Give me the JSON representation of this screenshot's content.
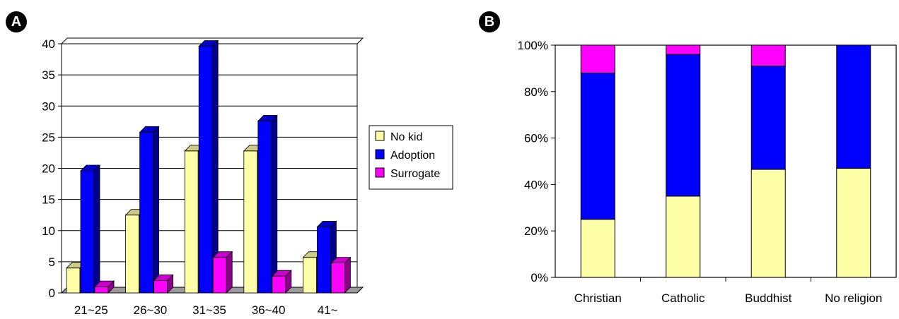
{
  "panels": {
    "a_label": "A",
    "b_label": "B"
  },
  "chart_data": [
    {
      "type": "bar",
      "style": "3d-clustered",
      "categories": [
        "21~25",
        "26~30",
        "31~35",
        "36~40",
        "41~"
      ],
      "series": [
        {
          "name": "No kid",
          "values": [
            4,
            12.5,
            22.8,
            22.8,
            5.7
          ],
          "color": "#FFFFA8"
        },
        {
          "name": "Adoption",
          "values": [
            19.6,
            25.8,
            39.6,
            27.6,
            10.6
          ],
          "color": "#0000FF"
        },
        {
          "name": "Surrogate",
          "values": [
            1,
            2,
            5.7,
            2.7,
            4.8
          ],
          "color": "#FF00FF"
        }
      ],
      "ylim": [
        0,
        40
      ],
      "yticks": [
        "0",
        "5",
        "10",
        "15",
        "20",
        "25",
        "30",
        "35",
        "40"
      ],
      "grid": true,
      "legend": "right"
    },
    {
      "type": "bar",
      "style": "100%-stacked",
      "categories": [
        "Christian",
        "Catholic",
        "Buddhist",
        "No religion"
      ],
      "series": [
        {
          "name": "No kid",
          "values": [
            25,
            35,
            46.5,
            47
          ],
          "color": "#FFFFA8"
        },
        {
          "name": "Adoption",
          "values": [
            63,
            61,
            44.5,
            53
          ],
          "color": "#0000FF"
        },
        {
          "name": "Surrogate",
          "values": [
            12,
            4,
            9,
            0
          ],
          "color": "#FF00FF"
        }
      ],
      "ylim": [
        0,
        100
      ],
      "yticks": [
        "0%",
        "20%",
        "40%",
        "60%",
        "80%",
        "100%"
      ],
      "grid": false,
      "legend": "none"
    }
  ]
}
